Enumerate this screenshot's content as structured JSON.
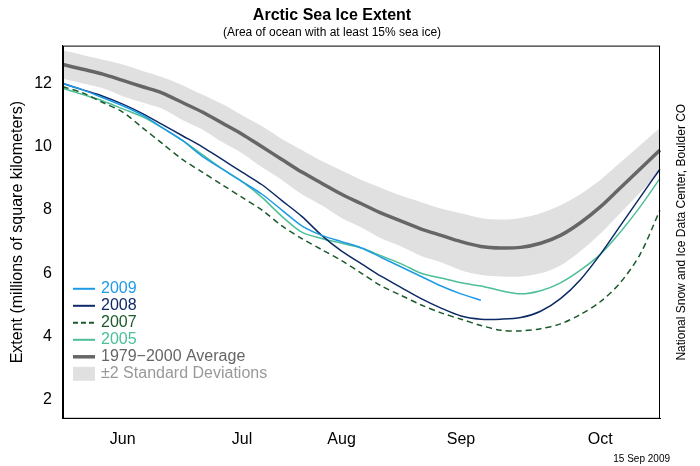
{
  "chart_data": {
    "type": "line",
    "title": "Arctic Sea Ice Extent",
    "subtitle": "(Area of ocean with at least 15% sea ice)",
    "y_label": "Extent (millions of square kilometers)",
    "source": "National Snow and Ice Data Center, Boulder CO",
    "note": "15 Sep 2009",
    "categories": [
      null,
      null,
      null,
      "Jun",
      null,
      null,
      null,
      null,
      null,
      "Jul",
      null,
      null,
      null,
      null,
      "Aug",
      null,
      null,
      null,
      null,
      null,
      "Sep",
      null,
      null,
      null,
      null,
      null,
      null,
      "Oct",
      null,
      null,
      null
    ],
    "ylim": [
      1.4,
      13.2
    ],
    "yticks": [
      2,
      4,
      6,
      8,
      10,
      12
    ],
    "grid": false,
    "legend": "bottom-left",
    "series": [
      {
        "name": "2009",
        "color": "#1e9be6",
        "type": "line",
        "marker": "none",
        "line_style": "solid",
        "values": [
          12.0,
          11.8,
          11.55,
          11.3,
          11.0,
          10.6,
          10.2,
          9.7,
          9.3,
          8.9,
          8.5,
          8.0,
          7.5,
          7.2,
          7.0,
          6.8,
          6.5,
          6.2,
          5.9,
          5.6,
          5.35,
          5.15,
          null,
          null,
          null,
          null,
          null,
          null,
          null,
          null,
          null
        ]
      },
      {
        "name": "2008",
        "color": "#0d2a66",
        "type": "line",
        "marker": "none",
        "line_style": "solid",
        "values": [
          12.0,
          11.8,
          11.6,
          11.35,
          11.05,
          10.7,
          10.35,
          10.0,
          9.6,
          9.2,
          8.8,
          8.3,
          7.8,
          7.2,
          6.7,
          6.3,
          5.9,
          5.55,
          5.2,
          4.9,
          4.65,
          4.55,
          4.55,
          4.6,
          4.8,
          5.2,
          5.8,
          6.6,
          7.5,
          8.4,
          9.3
        ]
      },
      {
        "name": "2007",
        "color": "#1b5a2b",
        "type": "line",
        "marker": "none",
        "line_style": "dashed",
        "values": [
          11.9,
          11.7,
          11.4,
          11.1,
          10.6,
          10.1,
          9.6,
          9.2,
          8.8,
          8.4,
          8.0,
          7.5,
          7.1,
          6.75,
          6.4,
          6.0,
          5.6,
          5.3,
          5.0,
          4.75,
          4.55,
          4.35,
          4.2,
          4.18,
          4.25,
          4.4,
          4.7,
          5.1,
          5.7,
          6.6,
          8.0
        ]
      },
      {
        "name": "2005",
        "color": "#4cbf98",
        "type": "line",
        "marker": "none",
        "line_style": "solid",
        "values": [
          11.85,
          11.65,
          11.45,
          11.2,
          10.95,
          10.6,
          10.2,
          9.75,
          9.3,
          8.9,
          8.4,
          7.8,
          7.3,
          7.1,
          6.95,
          6.8,
          6.55,
          6.3,
          6.0,
          5.85,
          5.7,
          5.6,
          5.45,
          5.35,
          5.45,
          5.7,
          6.1,
          6.6,
          7.3,
          8.1,
          9.0
        ]
      },
      {
        "name": "1979−2000 Average",
        "color": "#666666",
        "type": "line",
        "marker": "none",
        "line_style": "thick",
        "values": [
          12.6,
          12.45,
          12.3,
          12.1,
          11.9,
          11.7,
          11.4,
          11.1,
          10.75,
          10.4,
          10.0,
          9.6,
          9.2,
          8.85,
          8.5,
          8.2,
          7.9,
          7.65,
          7.4,
          7.2,
          7.0,
          6.85,
          6.8,
          6.82,
          6.95,
          7.2,
          7.6,
          8.1,
          8.7,
          9.3,
          9.9
        ]
      },
      {
        "name": "±2 Standard Deviations",
        "color": "#e0e0e0",
        "type": "band",
        "high": [
          13.05,
          12.9,
          12.75,
          12.6,
          12.4,
          12.2,
          11.95,
          11.65,
          11.35,
          11.0,
          10.65,
          10.25,
          9.9,
          9.55,
          9.25,
          8.95,
          8.7,
          8.45,
          8.25,
          8.05,
          7.9,
          7.75,
          7.7,
          7.75,
          7.9,
          8.15,
          8.5,
          8.95,
          9.5,
          10.05,
          10.6
        ],
        "low": [
          12.15,
          12.0,
          11.85,
          11.6,
          11.4,
          11.2,
          10.85,
          10.55,
          10.15,
          9.8,
          9.35,
          8.95,
          8.5,
          8.15,
          7.75,
          7.45,
          7.1,
          6.85,
          6.55,
          6.35,
          6.1,
          5.95,
          5.9,
          5.9,
          6.0,
          6.25,
          6.7,
          7.25,
          7.9,
          8.55,
          9.2
        ]
      }
    ]
  }
}
